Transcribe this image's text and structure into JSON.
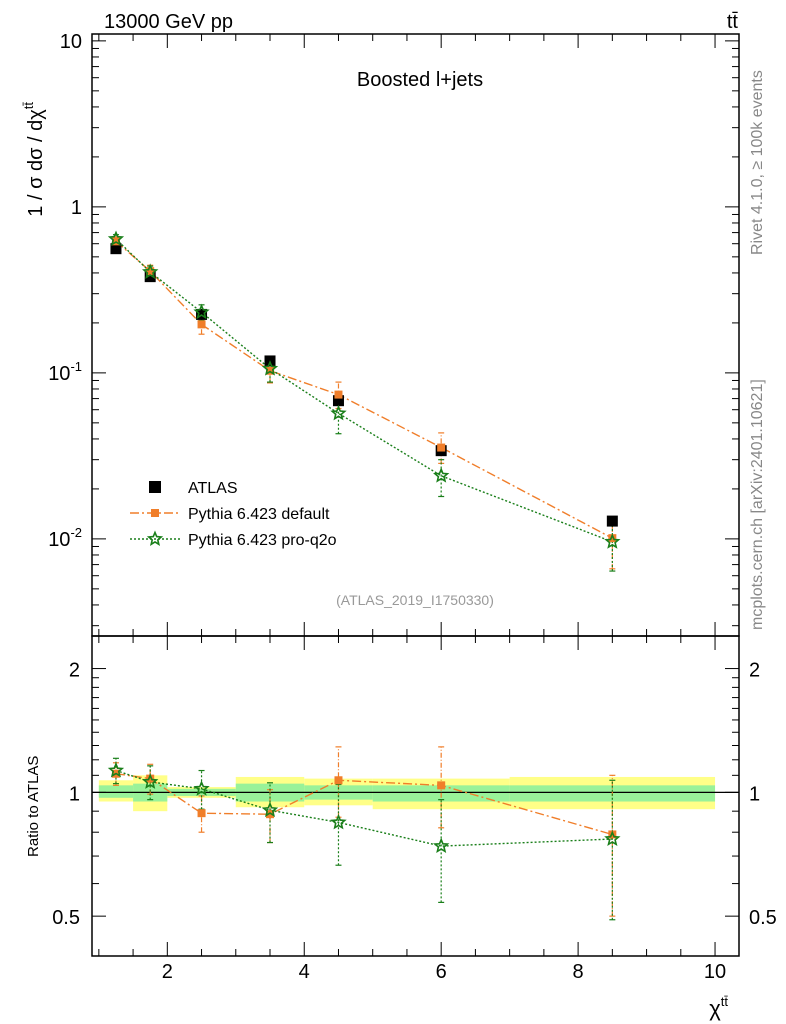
{
  "header": {
    "energy": "13000 GeV pp",
    "process": "tt̄"
  },
  "side_texts": {
    "rivet": "Rivet 4.1.0, ≥ 100k events",
    "mcplots": "mcplots.cern.ch [arXiv:2401.10621]"
  },
  "colors": {
    "atlas": "#000000",
    "default": "#f07e2a",
    "proq2o": "#1a7f1a",
    "band_outer": "#ffff88",
    "band_inner": "#99f299"
  },
  "chart_data": [
    {
      "type": "scatter",
      "yscale": "log",
      "title": "Boosted l+jets",
      "ylabel": "1 / σ dσ / dχ^tt̄",
      "xlim": [
        0.9,
        10.35
      ],
      "ylim": [
        0.0026,
        11
      ],
      "ytick_labels": [
        "10",
        "1",
        "10^-1",
        "10^-2"
      ],
      "ytick_values": [
        10,
        1,
        0.1,
        0.01
      ],
      "legend": [
        "ATLAS",
        "Pythia 6.423 default",
        "Pythia 6.423 pro-q2o"
      ],
      "legend_position": "lower-left",
      "watermark": "(ATLAS_2019_I1750330)",
      "x": [
        1.25,
        1.75,
        2.5,
        3.5,
        4.5,
        6.0,
        8.5
      ],
      "series": [
        {
          "name": "ATLAS",
          "values": [
            0.56,
            0.38,
            0.225,
            0.118,
            0.068,
            0.034,
            0.0128
          ]
        },
        {
          "name": "Pythia 6.423 default",
          "values": [
            0.62,
            0.41,
            0.196,
            0.103,
            0.074,
            0.0355,
            0.0101
          ],
          "err_lo": [
            0.04,
            0.035,
            0.025,
            0.016,
            0.013,
            0.007,
            0.0035
          ],
          "err_hi": [
            0.04,
            0.035,
            0.025,
            0.016,
            0.014,
            0.008,
            0.0035
          ]
        },
        {
          "name": "Pythia 6.423 pro-q2o",
          "values": [
            0.64,
            0.405,
            0.232,
            0.106,
            0.057,
            0.024,
            0.0096
          ],
          "err_lo": [
            0.04,
            0.035,
            0.025,
            0.018,
            0.014,
            0.006,
            0.0032
          ],
          "err_hi": [
            0.04,
            0.035,
            0.025,
            0.018,
            0.014,
            0.006,
            0.0032
          ]
        }
      ]
    },
    {
      "type": "scatter",
      "yscale": "log",
      "ylabel": "Ratio to ATLAS",
      "xlabel": "χ^tt̄",
      "xlim": [
        0.9,
        10.35
      ],
      "ylim": [
        0.4,
        2.4
      ],
      "ytick_labels": [
        "2",
        "1",
        "0.5"
      ],
      "ytick_values": [
        2,
        1,
        0.5
      ],
      "xtick_labels": [
        "2",
        "4",
        "6",
        "8",
        "10"
      ],
      "xtick_values": [
        2,
        4,
        6,
        8,
        10
      ],
      "x": [
        1.25,
        1.75,
        2.5,
        3.5,
        4.5,
        6.0,
        8.5
      ],
      "bin_edges": [
        1.0,
        1.5,
        2.0,
        3.0,
        4.0,
        5.0,
        7.0,
        10.0
      ],
      "band_outer": [
        [
          0.95,
          1.07
        ],
        [
          0.9,
          1.1
        ],
        [
          0.97,
          1.03
        ],
        [
          0.92,
          1.09
        ],
        [
          0.93,
          1.08
        ],
        [
          0.91,
          1.08
        ],
        [
          0.91,
          1.09
        ]
      ],
      "band_inner": [
        [
          0.97,
          1.04
        ],
        [
          0.95,
          1.05
        ],
        [
          0.98,
          1.02
        ],
        [
          0.95,
          1.05
        ],
        [
          0.96,
          1.04
        ],
        [
          0.95,
          1.04
        ],
        [
          0.95,
          1.04
        ]
      ],
      "series": [
        {
          "name": "Pythia 6.423 default",
          "values": [
            1.11,
            1.08,
            0.89,
            0.885,
            1.07,
            1.04,
            0.79
          ],
          "err_lo": [
            0.07,
            0.09,
            0.09,
            0.13,
            0.2,
            0.22,
            0.29
          ],
          "err_hi": [
            0.07,
            0.09,
            0.09,
            0.13,
            0.22,
            0.25,
            0.31
          ]
        },
        {
          "name": "Pythia 6.423 pro-q2o",
          "values": [
            1.13,
            1.06,
            1.02,
            0.905,
            0.845,
            0.74,
            0.77
          ],
          "err_lo": [
            0.08,
            0.1,
            0.11,
            0.15,
            0.18,
            0.2,
            0.28
          ],
          "err_hi": [
            0.08,
            0.1,
            0.11,
            0.15,
            0.2,
            0.22,
            0.3
          ]
        }
      ]
    }
  ]
}
